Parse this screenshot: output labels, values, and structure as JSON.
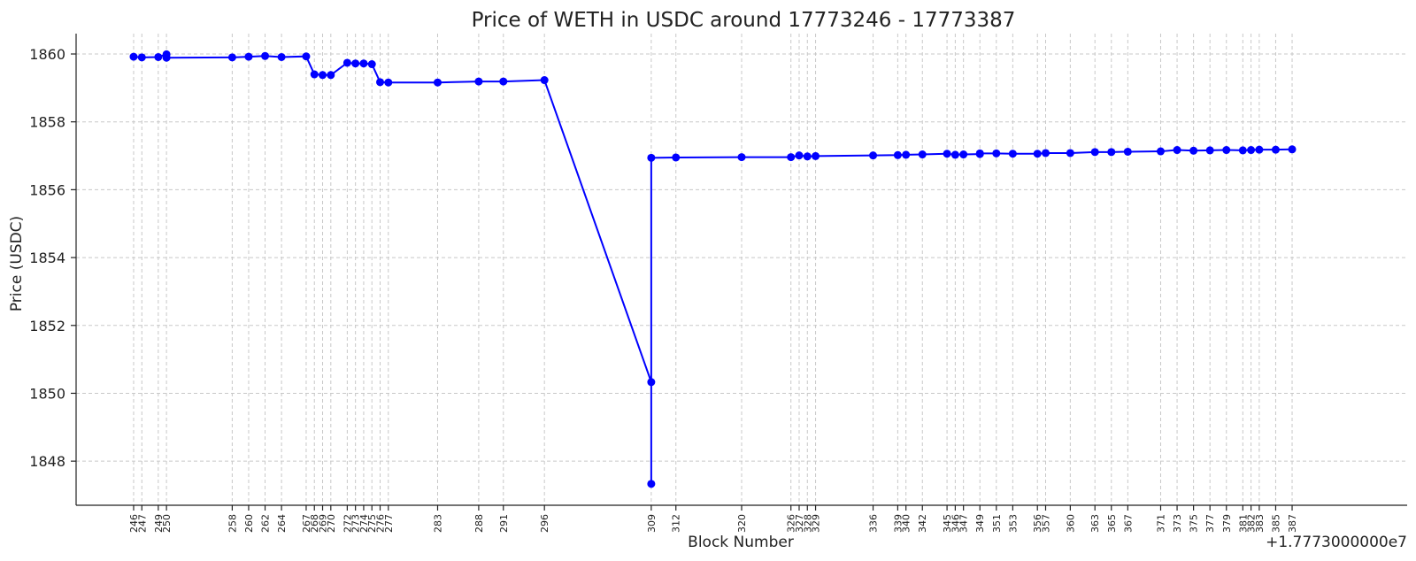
{
  "chart_data": {
    "type": "line",
    "title": "Price of WETH in USDC around 17773246 - 17773387",
    "xlabel": "Block Number",
    "ylabel": "Price (USDC)",
    "x_offset_label": "+1.7773000000e7",
    "xlim": [
      239,
      401
    ],
    "ylim": [
      1846.7,
      1860.6
    ],
    "yticks": [
      1848,
      1850,
      1852,
      1854,
      1856,
      1858,
      1860
    ],
    "grid": true,
    "color": "#0000ff",
    "series": [
      {
        "points": [
          [
            246,
            1859.92
          ],
          [
            247,
            1859.9
          ],
          [
            249,
            1859.91
          ],
          [
            250,
            1859.99
          ],
          [
            250,
            1859.89
          ],
          [
            258,
            1859.9
          ],
          [
            260,
            1859.92
          ],
          [
            262,
            1859.94
          ],
          [
            264,
            1859.91
          ],
          [
            267,
            1859.93
          ],
          [
            268,
            1859.4
          ],
          [
            269,
            1859.38
          ],
          [
            270,
            1859.38
          ],
          [
            272,
            1859.74
          ],
          [
            273,
            1859.72
          ],
          [
            274,
            1859.72
          ],
          [
            275,
            1859.7
          ],
          [
            276,
            1859.17
          ],
          [
            277,
            1859.16
          ],
          [
            283,
            1859.16
          ],
          [
            288,
            1859.19
          ],
          [
            291,
            1859.19
          ],
          [
            296,
            1859.23
          ],
          [
            309,
            1850.33
          ],
          [
            309,
            1847.33
          ],
          [
            309,
            1856.94
          ],
          [
            312,
            1856.95
          ],
          [
            320,
            1856.96
          ],
          [
            326,
            1856.96
          ],
          [
            327,
            1857.01
          ],
          [
            328,
            1856.98
          ],
          [
            329,
            1856.99
          ],
          [
            336,
            1857.01
          ],
          [
            339,
            1857.02
          ],
          [
            340,
            1857.03
          ],
          [
            342,
            1857.04
          ],
          [
            345,
            1857.06
          ],
          [
            346,
            1857.03
          ],
          [
            347,
            1857.04
          ],
          [
            349,
            1857.05
          ],
          [
            349,
            1857.07
          ],
          [
            351,
            1857.07
          ],
          [
            353,
            1857.06
          ],
          [
            356,
            1857.06
          ],
          [
            357,
            1857.08
          ],
          [
            360,
            1857.08
          ],
          [
            363,
            1857.11
          ],
          [
            365,
            1857.11
          ],
          [
            367,
            1857.12
          ],
          [
            371,
            1857.13
          ],
          [
            373,
            1857.17
          ],
          [
            375,
            1857.15
          ],
          [
            377,
            1857.16
          ],
          [
            379,
            1857.17
          ],
          [
            381,
            1857.16
          ],
          [
            382,
            1857.17
          ],
          [
            383,
            1857.18
          ],
          [
            385,
            1857.18
          ],
          [
            387,
            1857.19
          ]
        ]
      }
    ],
    "xticks": [
      {
        "x": 246,
        "label": "246"
      },
      {
        "x": 247,
        "label": "247"
      },
      {
        "x": 249,
        "label": "249"
      },
      {
        "x": 250,
        "label": "250"
      },
      {
        "x": 258,
        "label": "258"
      },
      {
        "x": 260,
        "label": "260"
      },
      {
        "x": 262,
        "label": "262"
      },
      {
        "x": 264,
        "label": "264"
      },
      {
        "x": 267,
        "label": "267"
      },
      {
        "x": 268,
        "label": "268"
      },
      {
        "x": 269,
        "label": "269"
      },
      {
        "x": 270,
        "label": "270"
      },
      {
        "x": 272,
        "label": "272"
      },
      {
        "x": 273,
        "label": "273"
      },
      {
        "x": 274,
        "label": "274"
      },
      {
        "x": 275,
        "label": "275"
      },
      {
        "x": 276,
        "label": "276"
      },
      {
        "x": 277,
        "label": "277"
      },
      {
        "x": 283,
        "label": "283"
      },
      {
        "x": 288,
        "label": "288"
      },
      {
        "x": 291,
        "label": "291"
      },
      {
        "x": 296,
        "label": "296"
      },
      {
        "x": 309,
        "label": "309"
      },
      {
        "x": 312,
        "label": "312"
      },
      {
        "x": 320,
        "label": "320"
      },
      {
        "x": 326,
        "label": "326"
      },
      {
        "x": 327,
        "label": "327"
      },
      {
        "x": 328,
        "label": "328"
      },
      {
        "x": 329,
        "label": "329"
      },
      {
        "x": 336,
        "label": "336"
      },
      {
        "x": 339,
        "label": "339"
      },
      {
        "x": 340,
        "label": "340"
      },
      {
        "x": 342,
        "label": "342"
      },
      {
        "x": 345,
        "label": "345"
      },
      {
        "x": 346,
        "label": "346"
      },
      {
        "x": 347,
        "label": "347"
      },
      {
        "x": 349,
        "label": "349"
      },
      {
        "x": 351,
        "label": "351"
      },
      {
        "x": 353,
        "label": "353"
      },
      {
        "x": 356,
        "label": "356"
      },
      {
        "x": 357,
        "label": "357"
      },
      {
        "x": 360,
        "label": "360"
      },
      {
        "x": 363,
        "label": "363"
      },
      {
        "x": 365,
        "label": "365"
      },
      {
        "x": 367,
        "label": "367"
      },
      {
        "x": 371,
        "label": "371"
      },
      {
        "x": 373,
        "label": "373"
      },
      {
        "x": 375,
        "label": "375"
      },
      {
        "x": 377,
        "label": "377"
      },
      {
        "x": 379,
        "label": "379"
      },
      {
        "x": 381,
        "label": "381"
      },
      {
        "x": 382,
        "label": "382"
      },
      {
        "x": 383,
        "label": "383"
      },
      {
        "x": 385,
        "label": "385"
      },
      {
        "x": 387,
        "label": "387"
      }
    ]
  }
}
